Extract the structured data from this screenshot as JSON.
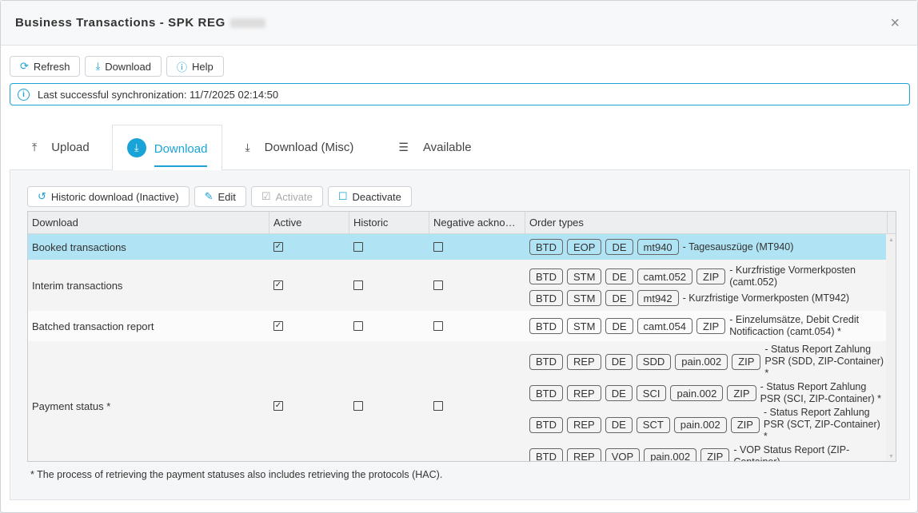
{
  "dialog": {
    "title": "Business Transactions - SPK REG",
    "close": "×"
  },
  "toolbar": {
    "refresh": "Refresh",
    "download": "Download",
    "help": "Help"
  },
  "info": {
    "text": "Last successful synchronization: 11/7/2025 02:14:50"
  },
  "tabs": [
    {
      "label": "Upload",
      "icon": "upload-icon"
    },
    {
      "label": "Download",
      "icon": "download-icon",
      "active": true
    },
    {
      "label": "Download (Misc)",
      "icon": "download-icon"
    },
    {
      "label": "Available",
      "icon": "list-icon"
    }
  ],
  "panel_toolbar": {
    "historic": "Historic download (Inactive)",
    "edit": "Edit",
    "activate": "Activate",
    "deactivate": "Deactivate"
  },
  "table": {
    "columns": [
      "Download",
      "Active",
      "Historic",
      "Negative acknowledgement",
      "Order types"
    ],
    "rows": [
      {
        "name": "Booked transactions",
        "active": true,
        "historic": false,
        "negative": false,
        "selected": true,
        "orders": [
          {
            "tags": [
              "BTD",
              "EOP",
              "DE",
              "mt940"
            ],
            "desc": "- Tagesauszüge (MT940)"
          }
        ]
      },
      {
        "name": "Interim transactions",
        "active": true,
        "historic": false,
        "negative": false,
        "orders": [
          {
            "tags": [
              "BTD",
              "STM",
              "DE",
              "camt.052",
              "ZIP"
            ],
            "desc": "- Kurzfristige Vormerkposten (camt.052)"
          },
          {
            "tags": [
              "BTD",
              "STM",
              "DE",
              "mt942"
            ],
            "desc": "- Kurzfristige Vormerkposten (MT942)"
          }
        ]
      },
      {
        "name": "Batched transaction report",
        "active": true,
        "historic": false,
        "negative": false,
        "orders": [
          {
            "tags": [
              "BTD",
              "STM",
              "DE",
              "camt.054",
              "ZIP"
            ],
            "desc": "- Einzelumsätze, Debit Credit Notificaction (camt.054) *"
          }
        ]
      },
      {
        "name": "Payment status *",
        "active": true,
        "historic": false,
        "negative": false,
        "orders": [
          {
            "tags": [
              "BTD",
              "REP",
              "DE",
              "SDD",
              "pain.002",
              "ZIP"
            ],
            "desc": "- Status Report Zahlung PSR (SDD, ZIP-Container) *"
          },
          {
            "tags": [
              "BTD",
              "REP",
              "DE",
              "SCI",
              "pain.002",
              "ZIP"
            ],
            "desc": "- Status Report Zahlung PSR (SCI, ZIP-Container) *"
          },
          {
            "tags": [
              "BTD",
              "REP",
              "DE",
              "SCT",
              "pain.002",
              "ZIP"
            ],
            "desc": "- Status Report Zahlung PSR (SCT, ZIP-Container) *"
          },
          {
            "tags": [
              "BTD",
              "REP",
              "VOP",
              "pain.002",
              "ZIP"
            ],
            "desc": "- VOP Status Report (ZIP-Container)"
          }
        ]
      }
    ]
  },
  "footnote": "* The process of retrieving the payment statuses also includes retrieving the protocols (HAC).",
  "colors": {
    "accent": "#1aa3d6",
    "selected_row": "#b0e3f3"
  }
}
